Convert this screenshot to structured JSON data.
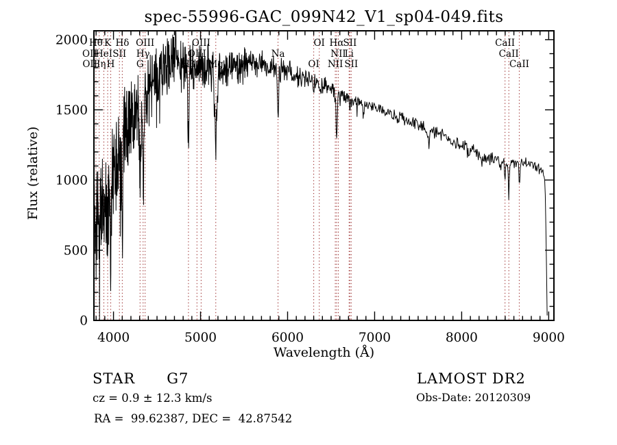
{
  "footer": {
    "class_type": "STAR      G7",
    "cz": "cz = 0.9 ± 12.3 km/s",
    "radec": "RA =  99.62387, DEC =  42.87542",
    "survey": "LAMOST DR2",
    "obs_date": "Obs-Date: 20120309"
  },
  "chart_data": {
    "type": "line",
    "title": "spec-55996-GAC_099N42_V1_sp04-049.fits",
    "xlabel": "Wavelength (Å)",
    "ylabel": "Flux (relative)",
    "xlim": [
      3775,
      9060
    ],
    "ylim": [
      0,
      2063
    ],
    "x_ticks": [
      4000,
      5000,
      6000,
      7000,
      8000,
      9000
    ],
    "y_ticks": [
      0,
      500,
      1000,
      1500,
      2000
    ],
    "x_minor_step": 100,
    "y_minor_step": 100,
    "grid": false,
    "legend": "none",
    "line_color": "#000000",
    "marker_color": "#9b2d2d",
    "seed": 11,
    "marked_wavelengths": [
      3727,
      3798,
      3835,
      3889,
      3933,
      3968,
      4068,
      4101,
      4305,
      4340,
      4363,
      4861,
      4959,
      5007,
      5175,
      5890,
      6300,
      6364,
      6548,
      6563,
      6583,
      6707,
      6716,
      6731,
      8498,
      8542,
      8662
    ],
    "line_labels": [
      {
        "label": "Hθ",
        "wl": 3798,
        "row": 1
      },
      {
        "label": "K",
        "wl": 3933,
        "row": 1
      },
      {
        "label": "Hδ",
        "wl": 4101,
        "row": 1
      },
      {
        "label": "OIII",
        "wl": 4363,
        "row": 1
      },
      {
        "label": "OIII",
        "wl": 5007,
        "row": 1
      },
      {
        "label": "OI",
        "wl": 6364,
        "row": 1
      },
      {
        "label": "Hα",
        "wl": 6563,
        "row": 1
      },
      {
        "label": "SII",
        "wl": 6716,
        "row": 1
      },
      {
        "label": "CaII",
        "wl": 8498,
        "row": 1
      },
      {
        "label": "OII",
        "wl": 3727,
        "row": 2
      },
      {
        "label": "HeI",
        "wl": 3889,
        "row": 2
      },
      {
        "label": "SII",
        "wl": 4068,
        "row": 2
      },
      {
        "label": "Hγ",
        "wl": 4340,
        "row": 2
      },
      {
        "label": "OIII",
        "wl": 4959,
        "row": 2
      },
      {
        "label": "Na",
        "wl": 5890,
        "row": 2
      },
      {
        "label": "NII",
        "wl": 6583,
        "row": 2
      },
      {
        "label": "Li",
        "wl": 6707,
        "row": 2
      },
      {
        "label": "CaII",
        "wl": 8542,
        "row": 2
      },
      {
        "label": "OII",
        "wl": 3729,
        "row": 3
      },
      {
        "label": "Hη",
        "wl": 3835,
        "row": 3
      },
      {
        "label": "H",
        "wl": 3968,
        "row": 3
      },
      {
        "label": "G",
        "wl": 4305,
        "row": 3
      },
      {
        "label": "Hβ",
        "wl": 4861,
        "row": 3
      },
      {
        "label": "Mg",
        "wl": 5175,
        "row": 3
      },
      {
        "label": "OI",
        "wl": 6300,
        "row": 3
      },
      {
        "label": "NII",
        "wl": 6548,
        "row": 3
      },
      {
        "label": "SII",
        "wl": 6731,
        "row": 3
      },
      {
        "label": "CaII",
        "wl": 8662,
        "row": 3
      }
    ],
    "envelope": [
      [
        3740,
        640,
        420
      ],
      [
        3785,
        800,
        420
      ],
      [
        3850,
        820,
        400
      ],
      [
        3920,
        900,
        420
      ],
      [
        3990,
        1060,
        420
      ],
      [
        4060,
        1260,
        380
      ],
      [
        4130,
        1360,
        340
      ],
      [
        4220,
        1500,
        320
      ],
      [
        4320,
        1560,
        300
      ],
      [
        4420,
        1650,
        280
      ],
      [
        4520,
        1750,
        260
      ],
      [
        4620,
        1830,
        240
      ],
      [
        4720,
        1860,
        220
      ],
      [
        4820,
        1800,
        210
      ],
      [
        4920,
        1790,
        200
      ],
      [
        5020,
        1820,
        190
      ],
      [
        5120,
        1790,
        180
      ],
      [
        5220,
        1780,
        165
      ],
      [
        5320,
        1800,
        150
      ],
      [
        5450,
        1820,
        140
      ],
      [
        5600,
        1830,
        125
      ],
      [
        5750,
        1825,
        110
      ],
      [
        5890,
        1790,
        100
      ],
      [
        6000,
        1770,
        95
      ],
      [
        6150,
        1735,
        85
      ],
      [
        6300,
        1695,
        80
      ],
      [
        6450,
        1665,
        75
      ],
      [
        6563,
        1635,
        70
      ],
      [
        6700,
        1585,
        65
      ],
      [
        6870,
        1550,
        60
      ],
      [
        7000,
        1520,
        58
      ],
      [
        7200,
        1460,
        55
      ],
      [
        7350,
        1425,
        55
      ],
      [
        7500,
        1395,
        52
      ],
      [
        7650,
        1355,
        50
      ],
      [
        7800,
        1310,
        50
      ],
      [
        7950,
        1260,
        50
      ],
      [
        8100,
        1215,
        55
      ],
      [
        8250,
        1165,
        55
      ],
      [
        8400,
        1135,
        55
      ],
      [
        8520,
        1125,
        48
      ],
      [
        8650,
        1125,
        48
      ],
      [
        8780,
        1115,
        45
      ],
      [
        8880,
        1085,
        40
      ],
      [
        8935,
        1045,
        32
      ],
      [
        8958,
        1000,
        25
      ],
      [
        8972,
        520,
        15
      ],
      [
        8982,
        30,
        8
      ],
      [
        8985,
        10,
        5
      ]
    ],
    "features": [
      [
        3798,
        250,
        5
      ],
      [
        3835,
        300,
        5
      ],
      [
        3889,
        200,
        4
      ],
      [
        3933,
        450,
        6
      ],
      [
        3968,
        430,
        6
      ],
      [
        4068,
        150,
        4
      ],
      [
        4101,
        700,
        5
      ],
      [
        4227,
        260,
        4
      ],
      [
        4305,
        500,
        10
      ],
      [
        4340,
        600,
        6
      ],
      [
        4713,
        -400,
        2.5
      ],
      [
        4861,
        580,
        6
      ],
      [
        5175,
        500,
        13
      ],
      [
        5890,
        340,
        7
      ],
      [
        6300,
        65,
        4
      ],
      [
        6563,
        310,
        7
      ],
      [
        6717,
        60,
        4
      ],
      [
        6870,
        80,
        10
      ],
      [
        7620,
        90,
        12
      ],
      [
        8230,
        40,
        8
      ],
      [
        8498,
        115,
        4.5
      ],
      [
        8542,
        240,
        5
      ],
      [
        8662,
        185,
        5
      ]
    ]
  }
}
